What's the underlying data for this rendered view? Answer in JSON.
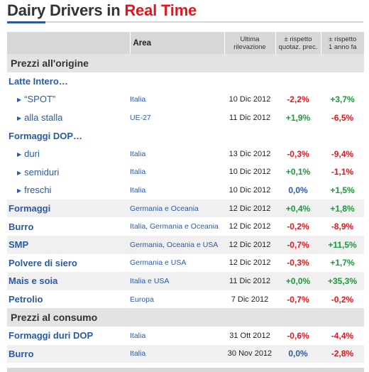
{
  "title": {
    "part1": "Dairy Drivers in ",
    "part2": "Real Time"
  },
  "colors": {
    "accent_blue": "#2a5aa6",
    "red": "#e8141b",
    "green": "#1a9a3a",
    "header_gray": "#d7d7d7"
  },
  "header": {
    "area": "Area",
    "date_l1": "Ultima",
    "date_l2": "rilevazione",
    "prev_l1": "± rispetto",
    "prev_l2": "quotaz. prec.",
    "year_l1": "± rispetto",
    "year_l2": "1 anno fa"
  },
  "sections": {
    "origin": "Prezzi all'origine",
    "consumer": "Prezzi al consumo"
  },
  "rows": [
    {
      "name": "Latte Intero…"
    },
    {
      "name": "“SPOT”",
      "area": "Italia",
      "date": "10 Dic 2012",
      "prev": "-2,2%",
      "year": "+3,7%"
    },
    {
      "name": "alla stalla",
      "area": "UE-27",
      "date": "11 Dic 2012",
      "prev": "+1,9%",
      "year": "-6,5%"
    },
    {
      "name": "Formaggi DOP…"
    },
    {
      "name": "duri",
      "area": "Italia",
      "date": "13 Dic 2012",
      "prev": "-0,3%",
      "year": "-9,4%"
    },
    {
      "name": "semiduri",
      "area": "Italia",
      "date": "10 Dic 2012",
      "prev": "+0,1%",
      "year": "-1,1%"
    },
    {
      "name": "freschi",
      "area": "Italia",
      "date": "10 Dic 2012",
      "prev": "0,0%",
      "year": "+1,5%"
    },
    {
      "name": "Formaggi",
      "area": "Germania e Oceania",
      "date": "12 Dic 2012",
      "prev": "+0,4%",
      "year": "+1,8%"
    },
    {
      "name": "Burro",
      "area": "Italia, Germania e Oceania",
      "date": "12 Dic 2012",
      "prev": "-0,2%",
      "year": "-8,9%"
    },
    {
      "name": "SMP",
      "area": "Germania, Oceania e USA",
      "date": "12 Dic 2012",
      "prev": "-0,7%",
      "year": "+11,5%"
    },
    {
      "name": "Polvere di siero",
      "area": "Germania e USA",
      "date": "12 Dic 2012",
      "prev": "-0,3%",
      "year": "+1,7%"
    },
    {
      "name": "Mais e soia",
      "area": "Italia e USA",
      "date": "11 Dic 2012",
      "prev": "+0,0%",
      "year": "+35,3%"
    },
    {
      "name": "Petrolio",
      "area": "Europa",
      "date": "7 Dic 2012",
      "prev": "-0,7%",
      "year": "-0,2%"
    },
    {
      "name": "Formaggi duri DOP",
      "area": "Italia",
      "date": "31 Ott 2012",
      "prev": "-0,6%",
      "year": "-4,4%"
    },
    {
      "name": "Burro",
      "area": "Italia",
      "date": "30 Nov 2012",
      "prev": "0,0%",
      "year": "-2,8%"
    }
  ]
}
